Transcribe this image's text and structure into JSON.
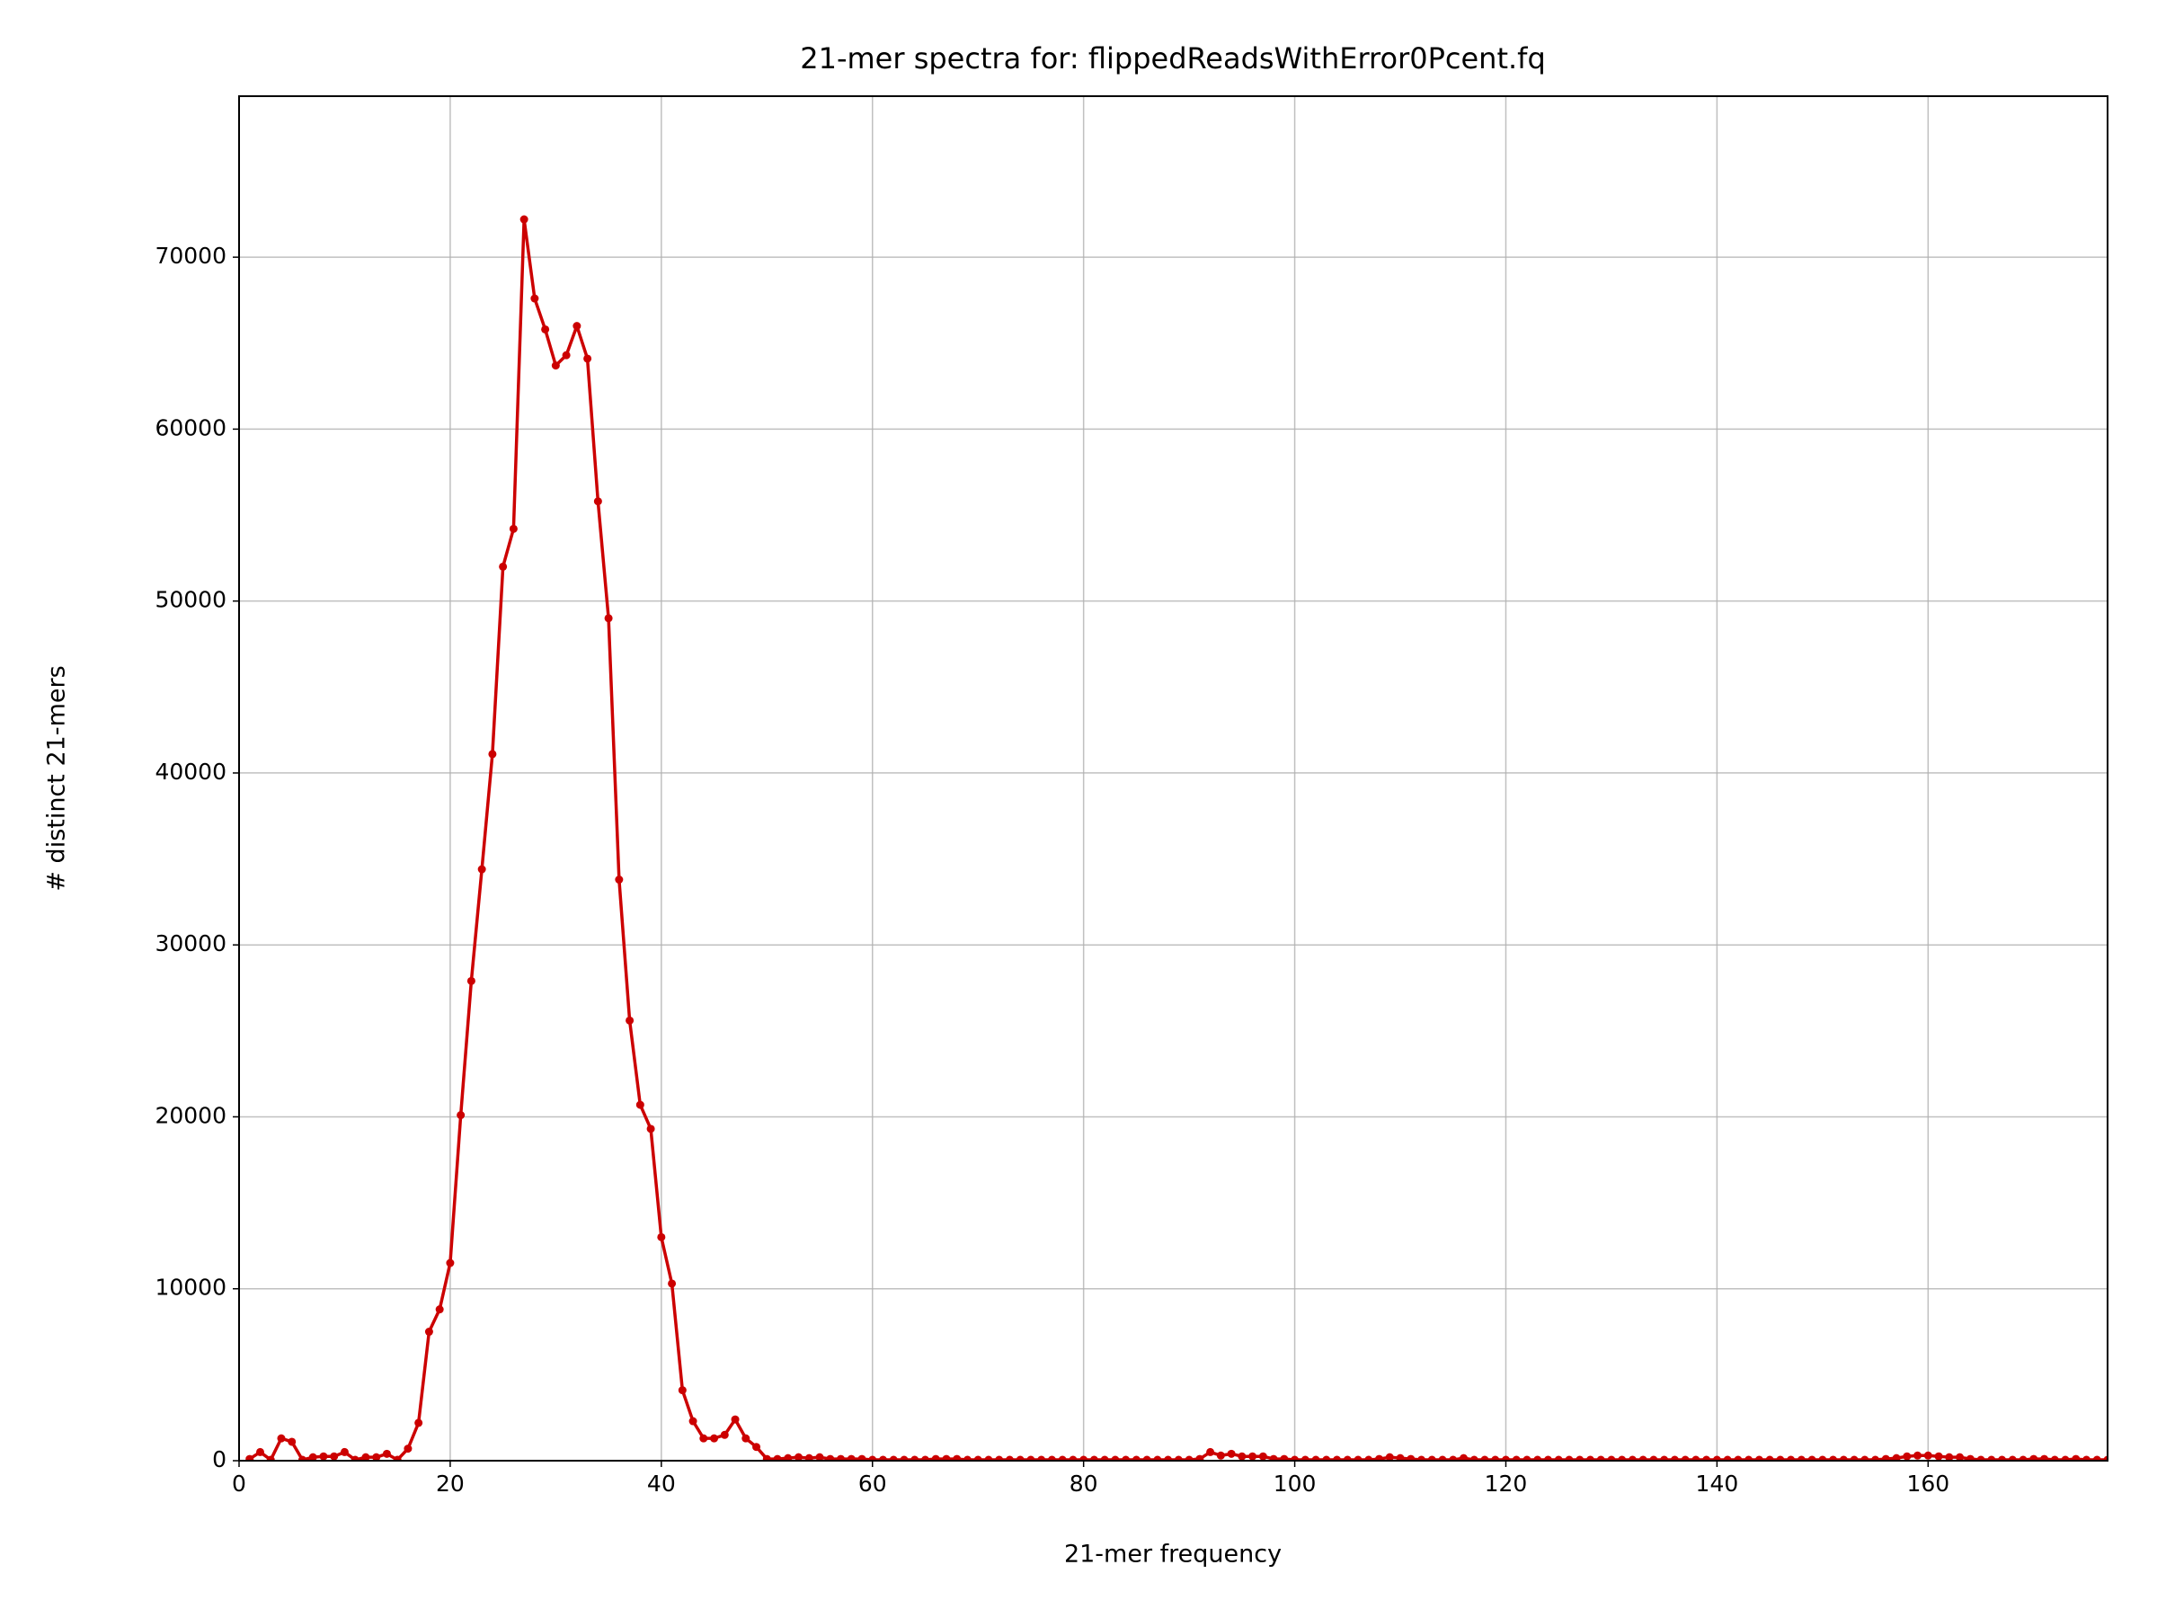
{
  "chart_data": {
    "type": "line",
    "title": "21-mer spectra for: flippedReadsWithError0Pcent.fq",
    "xlabel": "21-mer frequency",
    "ylabel": "# distinct 21-mers",
    "color": "#cc0000",
    "grid": true,
    "xlim": [
      0,
      177
    ],
    "ylim": [
      0,
      79365
    ],
    "xticks": [
      0,
      20,
      40,
      60,
      80,
      100,
      120,
      140,
      160
    ],
    "yticks": [
      0,
      10000,
      20000,
      30000,
      40000,
      50000,
      60000,
      70000
    ],
    "x": [
      1,
      2,
      3,
      4,
      5,
      6,
      7,
      8,
      9,
      10,
      11,
      12,
      13,
      14,
      15,
      16,
      17,
      18,
      19,
      20,
      21,
      22,
      23,
      24,
      25,
      26,
      27,
      28,
      29,
      30,
      31,
      32,
      33,
      34,
      35,
      36,
      37,
      38,
      39,
      40,
      41,
      42,
      43,
      44,
      45,
      46,
      47,
      48,
      49,
      50,
      51,
      52,
      53,
      54,
      55,
      56,
      57,
      58,
      59,
      60,
      61,
      62,
      63,
      64,
      65,
      66,
      67,
      68,
      69,
      70,
      71,
      72,
      73,
      74,
      75,
      76,
      77,
      78,
      79,
      80,
      81,
      82,
      83,
      84,
      85,
      86,
      87,
      88,
      89,
      90,
      91,
      92,
      93,
      94,
      95,
      96,
      97,
      98,
      99,
      100,
      101,
      102,
      103,
      104,
      105,
      106,
      107,
      108,
      109,
      110,
      111,
      112,
      113,
      114,
      115,
      116,
      117,
      118,
      119,
      120,
      121,
      122,
      123,
      124,
      125,
      126,
      127,
      128,
      129,
      130,
      131,
      132,
      133,
      134,
      135,
      136,
      137,
      138,
      139,
      140,
      141,
      142,
      143,
      144,
      145,
      146,
      147,
      148,
      149,
      150,
      151,
      152,
      153,
      154,
      155,
      156,
      157,
      158,
      159,
      160,
      161,
      162,
      163,
      164,
      165,
      166,
      167,
      168,
      169,
      170,
      171,
      172,
      173,
      174,
      175,
      176,
      177
    ],
    "values": [
      100,
      500,
      50,
      1300,
      1100,
      50,
      200,
      250,
      250,
      500,
      50,
      200,
      200,
      400,
      50,
      700,
      2200,
      7500,
      8800,
      11500,
      20100,
      27900,
      34400,
      41100,
      52000,
      54200,
      72200,
      67600,
      65800,
      63700,
      64300,
      66000,
      64100,
      55800,
      49000,
      33800,
      25600,
      20700,
      19300,
      13000,
      10300,
      4100,
      2300,
      1300,
      1300,
      1500,
      2400,
      1300,
      800,
      100,
      100,
      150,
      200,
      150,
      200,
      100,
      100,
      100,
      100,
      50,
      50,
      50,
      50,
      50,
      50,
      100,
      100,
      100,
      50,
      50,
      50,
      50,
      50,
      50,
      50,
      50,
      50,
      50,
      50,
      50,
      50,
      50,
      50,
      50,
      50,
      50,
      50,
      50,
      50,
      50,
      100,
      500,
      300,
      400,
      250,
      250,
      250,
      100,
      100,
      50,
      50,
      50,
      50,
      50,
      50,
      50,
      50,
      100,
      200,
      150,
      100,
      50,
      50,
      50,
      50,
      150,
      50,
      50,
      50,
      50,
      50,
      50,
      50,
      50,
      50,
      50,
      50,
      50,
      50,
      50,
      50,
      50,
      50,
      50,
      50,
      50,
      50,
      50,
      50,
      50,
      50,
      50,
      50,
      50,
      50,
      50,
      50,
      50,
      50,
      50,
      50,
      50,
      50,
      50,
      50,
      100,
      150,
      250,
      300,
      300,
      250,
      200,
      200,
      100,
      50,
      50,
      50,
      50,
      50,
      100,
      100,
      50,
      50,
      100,
      50,
      50,
      50
    ]
  }
}
